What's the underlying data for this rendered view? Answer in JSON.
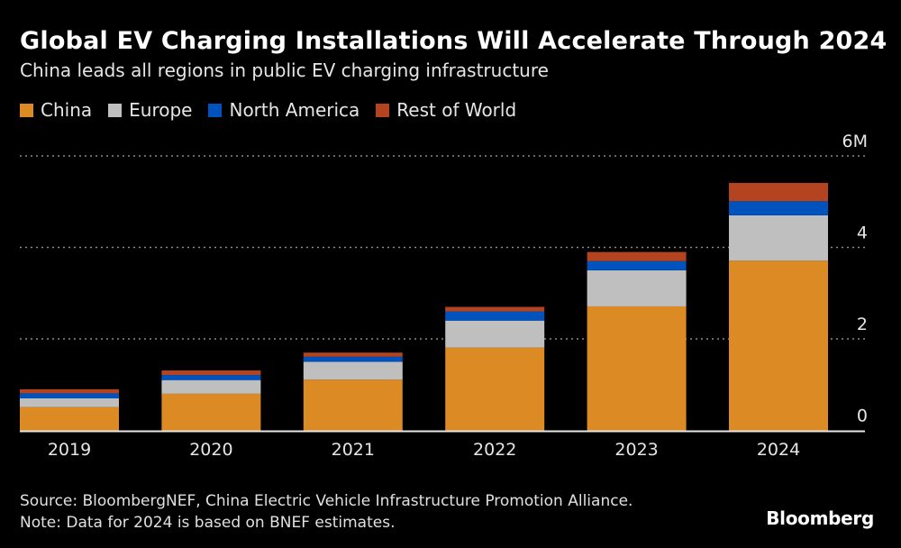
{
  "title": "Global EV Charging Installations Will Accelerate Through 2024",
  "subtitle": "China leads all regions in public EV charging infrastructure",
  "source": "Source: BloombergNEF, China Electric Vehicle Infrastructure Promotion Alliance.",
  "note": "Note: Data for 2024 is based on BNEF estimates.",
  "logo": "Bloomberg",
  "chart_data": {
    "type": "bar",
    "stacked": true,
    "categories": [
      "2019",
      "2020",
      "2021",
      "2022",
      "2023",
      "2024"
    ],
    "series": [
      {
        "name": "China",
        "color": "#dc8a24",
        "values": [
          0.51,
          0.8,
          1.11,
          1.81,
          2.71,
          3.71
        ]
      },
      {
        "name": "Europe",
        "color": "#bfbfbf",
        "values": [
          0.19,
          0.3,
          0.39,
          0.59,
          0.79,
          0.99
        ]
      },
      {
        "name": "North America",
        "color": "#0052bd",
        "values": [
          0.11,
          0.11,
          0.11,
          0.2,
          0.2,
          0.31
        ]
      },
      {
        "name": "Rest of World",
        "color": "#b4431f",
        "values": [
          0.09,
          0.1,
          0.09,
          0.1,
          0.2,
          0.4
        ]
      }
    ],
    "ylim": [
      0,
      6
    ],
    "yticks": [
      0,
      2,
      4,
      6
    ],
    "ytick_labels": [
      "0",
      "2",
      "4",
      "6M"
    ],
    "grid": true,
    "legend_position": "top-left",
    "axis_position": "right"
  }
}
